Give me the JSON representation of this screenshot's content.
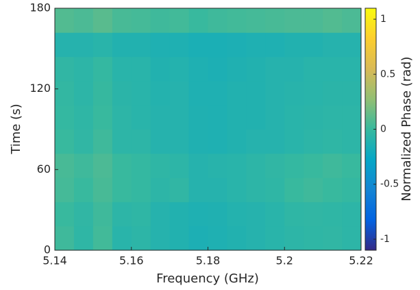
{
  "chart_data": {
    "type": "heatmap",
    "xlabel": "Frequency (GHz)",
    "ylabel": "Time (s)",
    "colorbar_label": "Normalized Phase (rad)",
    "xlim": [
      5.14,
      5.22
    ],
    "xticks": [
      5.14,
      5.16,
      5.18,
      5.2,
      5.22
    ],
    "ylim": [
      0,
      180
    ],
    "yticks": [
      0,
      60,
      120,
      180
    ],
    "clim": [
      -1.1,
      1.1
    ],
    "cticks": [
      -1,
      -0.5,
      0,
      0.5,
      1
    ],
    "colormap": "parula",
    "z": [
      [
        0.02,
        -0.05,
        0.03,
        -0.08,
        -0.06,
        -0.1,
        -0.12,
        -0.15,
        -0.14,
        -0.12,
        -0.1,
        -0.08,
        -0.06,
        -0.05,
        -0.04,
        -0.06
      ],
      [
        0.0,
        -0.04,
        0.02,
        -0.06,
        -0.05,
        -0.1,
        -0.12,
        -0.14,
        -0.13,
        -0.11,
        -0.1,
        -0.08,
        -0.05,
        -0.04,
        -0.05,
        -0.06
      ],
      [
        0.04,
        0.0,
        0.05,
        0.0,
        -0.02,
        -0.06,
        -0.04,
        -0.1,
        -0.1,
        -0.08,
        -0.06,
        -0.05,
        0.0,
        0.02,
        0.0,
        -0.02
      ],
      [
        0.05,
        0.02,
        0.06,
        0.0,
        -0.02,
        -0.05,
        -0.06,
        -0.1,
        -0.09,
        -0.08,
        -0.06,
        -0.04,
        -0.02,
        0.0,
        0.02,
        0.0
      ],
      [
        0.0,
        -0.04,
        0.02,
        -0.06,
        -0.06,
        -0.1,
        -0.1,
        -0.13,
        -0.14,
        -0.12,
        -0.1,
        -0.1,
        -0.08,
        -0.06,
        -0.05,
        -0.06
      ],
      [
        -0.02,
        -0.05,
        0.0,
        -0.06,
        -0.08,
        -0.1,
        -0.1,
        -0.13,
        -0.14,
        -0.12,
        -0.12,
        -0.1,
        -0.08,
        -0.07,
        -0.06,
        -0.06
      ],
      [
        -0.03,
        -0.06,
        -0.01,
        -0.07,
        -0.08,
        -0.11,
        -0.1,
        -0.14,
        -0.14,
        -0.12,
        -0.12,
        -0.1,
        -0.09,
        -0.08,
        -0.07,
        -0.07
      ],
      [
        -0.04,
        -0.06,
        -0.02,
        -0.08,
        -0.08,
        -0.12,
        -0.11,
        -0.14,
        -0.15,
        -0.13,
        -0.12,
        -0.1,
        -0.1,
        -0.08,
        -0.08,
        -0.08
      ],
      [
        -0.1,
        -0.1,
        -0.08,
        -0.12,
        -0.12,
        -0.14,
        -0.14,
        -0.16,
        -0.16,
        -0.15,
        -0.14,
        -0.14,
        -0.12,
        -0.12,
        -0.1,
        -0.1
      ],
      [
        0.08,
        0.06,
        0.1,
        0.05,
        0.04,
        0.02,
        0.03,
        0.0,
        0.02,
        0.03,
        0.04,
        0.05,
        0.06,
        0.06,
        0.08,
        0.06
      ]
    ]
  }
}
